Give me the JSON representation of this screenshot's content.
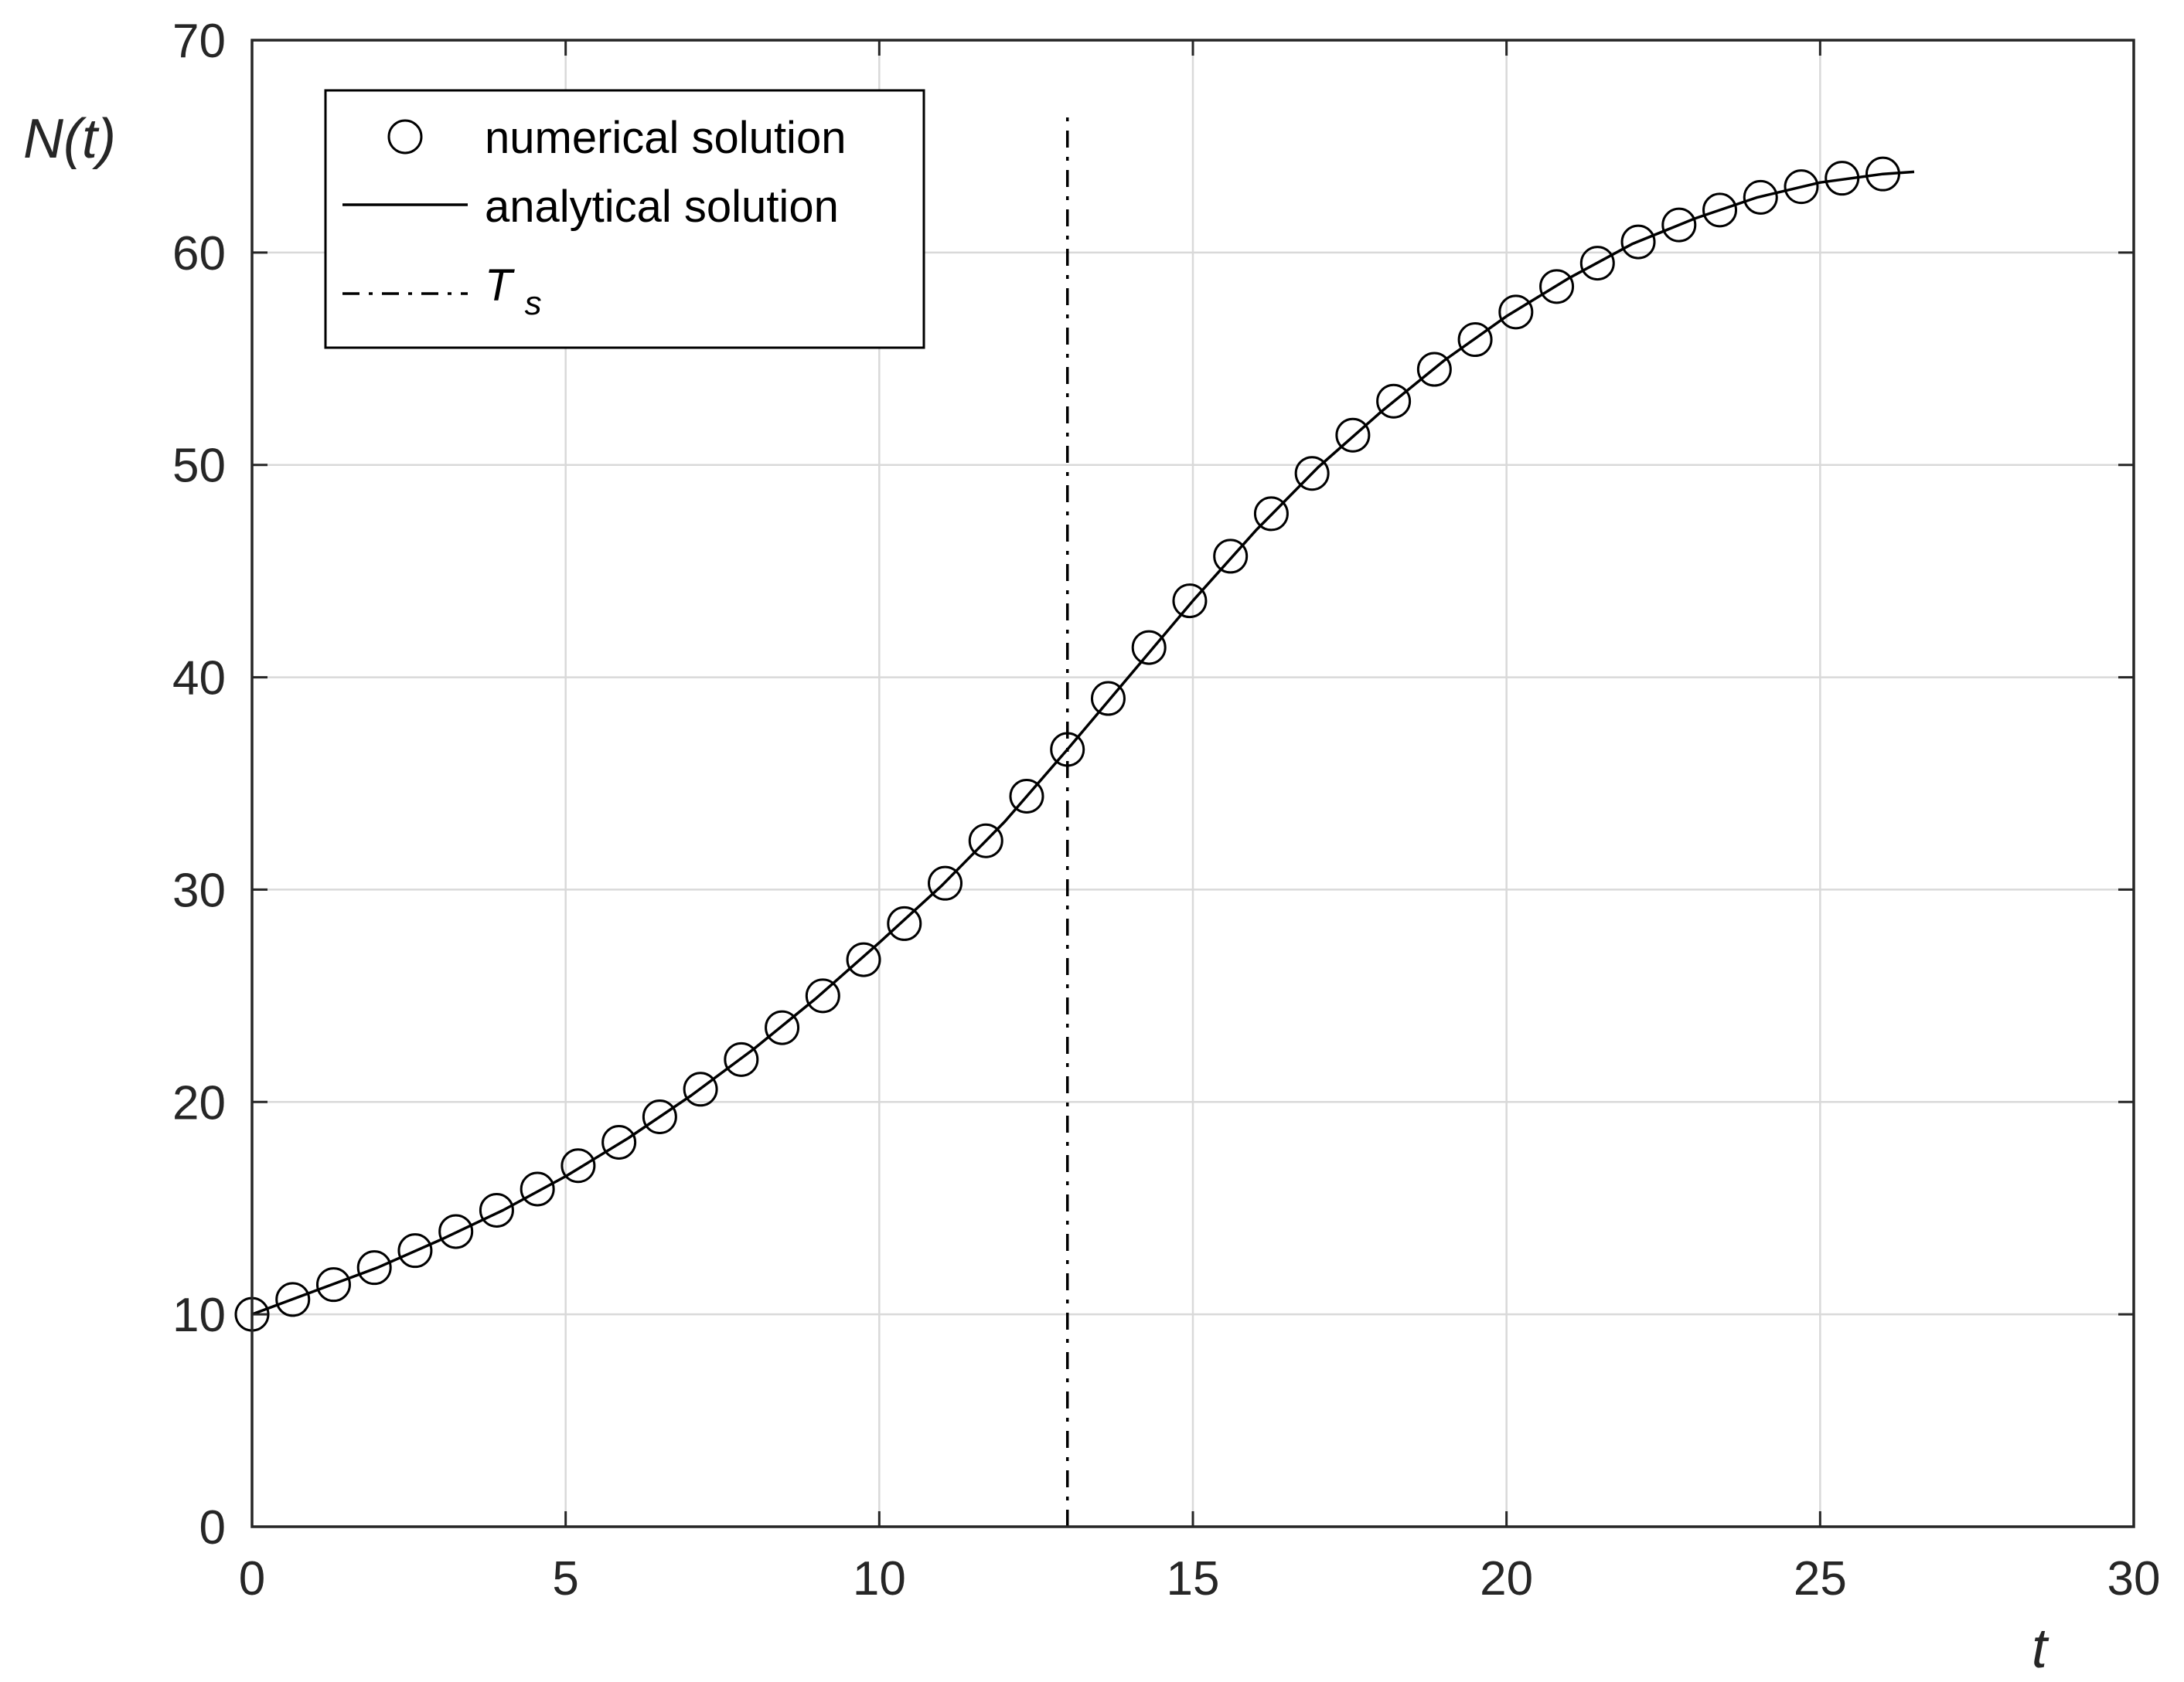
{
  "chart_data": {
    "type": "line",
    "title": "",
    "xlabel": "t",
    "ylabel": "N(t)",
    "xlim": [
      0,
      30
    ],
    "ylim": [
      0,
      70
    ],
    "xticks": [
      0,
      5,
      10,
      15,
      20,
      25,
      30
    ],
    "yticks": [
      0,
      10,
      20,
      30,
      40,
      50,
      60,
      70
    ],
    "grid": true,
    "legend_position": "top-left",
    "legend": {
      "numerical": "numerical solution",
      "analytical": "analytical solution",
      "ts_main": "T",
      "ts_sub": "s"
    },
    "colors": {
      "line": "#000000",
      "grid": "#d9d9d9",
      "axis": "#262626"
    },
    "series": [
      {
        "name": "numerical solution",
        "marker": "circle",
        "x": [
          0,
          0.65,
          1.3,
          1.95,
          2.6,
          3.25,
          3.9,
          4.55,
          5.2,
          5.85,
          6.5,
          7.15,
          7.8,
          8.45,
          9.1,
          9.75,
          10.4,
          11.05,
          11.7,
          12.35,
          13.0,
          13.65,
          14.3,
          14.95,
          15.6,
          16.25,
          16.9,
          17.55,
          18.2,
          18.85,
          19.5,
          20.15,
          20.8,
          21.45,
          22.1,
          22.75,
          23.4,
          24.05,
          24.7,
          25.35,
          26.0
        ],
        "y": [
          10.0,
          10.7,
          11.4,
          12.2,
          13.0,
          13.9,
          14.9,
          15.9,
          17.0,
          18.1,
          19.3,
          20.6,
          22.0,
          23.5,
          25.0,
          26.7,
          28.4,
          30.3,
          32.3,
          34.4,
          36.6,
          39.0,
          41.4,
          43.6,
          45.7,
          47.7,
          49.6,
          51.4,
          53.0,
          54.5,
          55.9,
          57.2,
          58.4,
          59.5,
          60.5,
          61.3,
          62.0,
          62.6,
          63.1,
          63.5,
          63.7
        ]
      },
      {
        "name": "analytical solution",
        "style": "solid",
        "x": [
          0,
          1,
          2,
          3,
          4,
          5,
          6,
          7,
          8,
          9,
          10,
          11,
          12,
          13,
          14,
          15,
          16,
          17,
          18,
          19,
          20,
          21,
          22,
          23,
          24,
          25,
          26,
          26.5
        ],
        "y": [
          10.0,
          11.1,
          12.2,
          13.5,
          14.9,
          16.5,
          18.3,
          20.3,
          22.5,
          24.9,
          27.5,
          30.2,
          33.2,
          36.6,
          40.1,
          43.6,
          46.9,
          49.9,
          52.5,
          54.9,
          57.0,
          58.8,
          60.4,
          61.6,
          62.6,
          63.3,
          63.7,
          63.8
        ]
      }
    ],
    "vlines": [
      {
        "name": "T_s",
        "x": 13.0,
        "y_range": [
          0,
          66.5
        ],
        "style": "dash-dot"
      }
    ]
  }
}
